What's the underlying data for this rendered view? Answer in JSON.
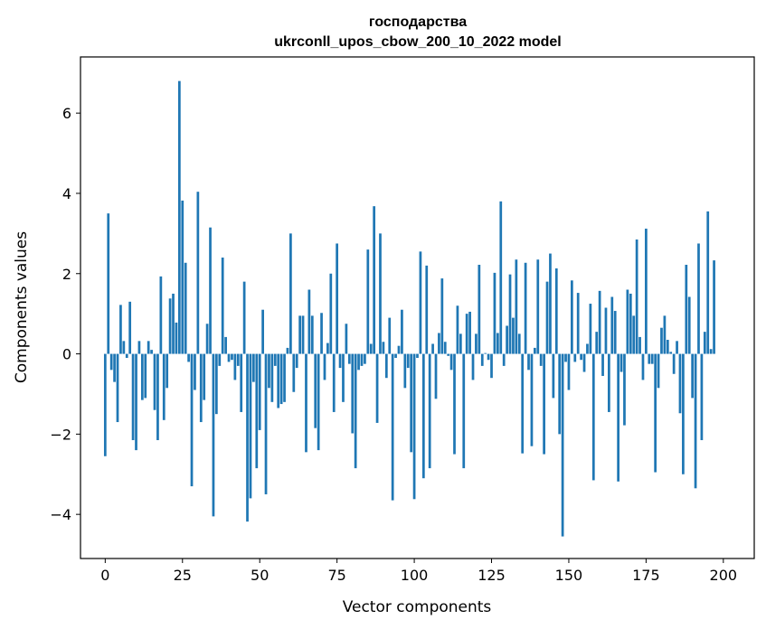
{
  "chart_data": {
    "type": "bar",
    "title": "господарства",
    "subtitle": "ukrconll_upos_cbow_200_10_2022 model",
    "xlabel": "Vector components",
    "ylabel": "Components values",
    "xlim": [
      -8,
      210
    ],
    "ylim": [
      -5.1,
      7.4
    ],
    "x_ticks": [
      0,
      25,
      50,
      75,
      100,
      125,
      150,
      175,
      200
    ],
    "y_ticks": [
      -4,
      -2,
      0,
      2,
      4,
      6
    ],
    "bar_color": "#1f77b4",
    "grid": false,
    "values": [
      -2.55,
      3.5,
      -0.4,
      -0.7,
      -1.7,
      1.22,
      0.32,
      -0.1,
      1.3,
      -2.15,
      -2.4,
      0.32,
      -1.15,
      -1.1,
      0.32,
      0.1,
      -1.4,
      -2.15,
      1.93,
      -1.65,
      -0.85,
      1.38,
      1.5,
      0.78,
      6.8,
      3.82,
      2.27,
      -0.2,
      -3.3,
      -0.9,
      4.04,
      -1.7,
      -1.15,
      0.75,
      3.15,
      -4.05,
      -1.5,
      -0.3,
      2.4,
      0.42,
      -0.2,
      -0.15,
      -0.65,
      -0.3,
      -1.45,
      1.8,
      -4.18,
      -3.6,
      -0.7,
      -2.85,
      -1.9,
      1.1,
      -3.5,
      -0.85,
      -1.2,
      -0.3,
      -1.35,
      -1.25,
      -1.2,
      0.15,
      3.0,
      -0.95,
      -0.35,
      0.95,
      0.95,
      -2.45,
      1.6,
      0.95,
      -1.85,
      -2.4,
      1.02,
      -0.65,
      0.27,
      2.0,
      -1.45,
      2.75,
      -0.35,
      -1.2,
      0.75,
      -0.25,
      -1.98,
      -2.85,
      -0.4,
      -0.3,
      -0.25,
      2.6,
      0.25,
      3.68,
      -1.72,
      3.0,
      0.3,
      -0.6,
      0.9,
      -3.65,
      -0.1,
      0.2,
      1.1,
      -0.85,
      -0.35,
      -2.45,
      -3.62,
      -0.1,
      2.55,
      -3.1,
      2.2,
      -2.85,
      0.25,
      -1.12,
      0.52,
      1.88,
      0.3,
      -0.05,
      -0.4,
      -2.5,
      1.2,
      0.5,
      -2.85,
      1.0,
      1.05,
      -0.65,
      0.5,
      2.22,
      -0.3,
      0.02,
      -0.15,
      -0.6,
      2.02,
      0.52,
      3.8,
      -0.3,
      0.7,
      1.98,
      0.9,
      2.35,
      0.5,
      -2.48,
      2.27,
      -0.4,
      -2.3,
      0.15,
      2.35,
      -0.3,
      -2.5,
      1.8,
      2.5,
      -1.1,
      2.13,
      -2.0,
      -4.55,
      -0.2,
      -0.9,
      1.83,
      -0.2,
      1.52,
      -0.15,
      -0.45,
      0.25,
      1.25,
      -3.15,
      0.55,
      1.57,
      -0.55,
      1.15,
      -1.45,
      1.42,
      1.07,
      -3.18,
      -0.45,
      -1.78,
      1.6,
      1.5,
      0.95,
      2.85,
      0.42,
      -0.65,
      3.12,
      -0.25,
      -0.25,
      -2.95,
      -0.85,
      0.65,
      0.95,
      0.35,
      0.05,
      -0.5,
      0.32,
      -1.48,
      -3.0,
      2.22,
      1.42,
      -1.1,
      -3.35,
      2.75,
      -2.15,
      0.55,
      3.55,
      0.12,
      2.33
    ]
  }
}
